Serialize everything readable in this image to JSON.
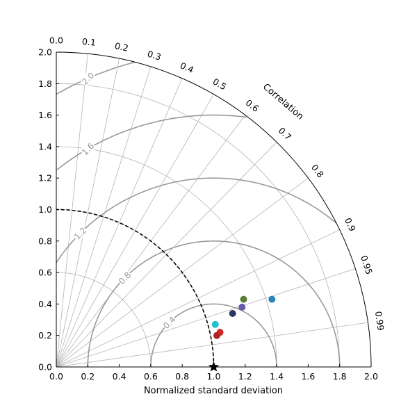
{
  "chart_data": {
    "type": "scatter",
    "subtype": "taylor-diagram",
    "xlabel": "Normalized standard deviation",
    "ylabel": "",
    "arc_label": "Correlation",
    "xlim": [
      0.0,
      2.0
    ],
    "ylim": [
      0.0,
      2.0
    ],
    "x_ticks": [
      "0.0",
      "0.2",
      "0.4",
      "0.6",
      "0.8",
      "1.0",
      "1.2",
      "1.4",
      "1.6",
      "1.8",
      "2.0"
    ],
    "y_ticks": [
      "0.0",
      "0.2",
      "0.4",
      "0.6",
      "0.8",
      "1.0",
      "1.2",
      "1.4",
      "1.6",
      "1.8",
      "2.0"
    ],
    "correlation_ticks": [
      "0.0",
      "0.1",
      "0.2",
      "0.3",
      "0.4",
      "0.5",
      "0.6",
      "0.7",
      "0.8",
      "0.9",
      "0.95",
      "0.99"
    ],
    "correlation_values": [
      0.0,
      0.1,
      0.2,
      0.3,
      0.4,
      0.5,
      0.6,
      0.7,
      0.8,
      0.9,
      0.95,
      0.99
    ],
    "std_arcs": [
      0.6,
      1.0,
      1.4,
      1.8
    ],
    "rms_contours": [
      {
        "value": 0.4,
        "label": "0.4"
      },
      {
        "value": 0.8,
        "label": "0.8"
      },
      {
        "value": 1.2,
        "label": "1.2"
      },
      {
        "value": 1.6,
        "label": "1.6"
      },
      {
        "value": 2.0,
        "label": "2.0"
      }
    ],
    "reference": {
      "x": 1.0,
      "y": 0.0,
      "marker": "star"
    },
    "reference_arc": 1.0,
    "points": [
      {
        "x": 1.37,
        "y": 0.43,
        "color": "#2b83ba"
      },
      {
        "x": 1.19,
        "y": 0.43,
        "color": "#5a7d32"
      },
      {
        "x": 1.18,
        "y": 0.38,
        "color": "#6a5aaa"
      },
      {
        "x": 1.12,
        "y": 0.34,
        "color": "#2c3566"
      },
      {
        "x": 1.01,
        "y": 0.27,
        "color": "#1fbfcf"
      },
      {
        "x": 1.04,
        "y": 0.22,
        "color": "#d62728"
      },
      {
        "x": 1.02,
        "y": 0.2,
        "color": "#b22222"
      }
    ],
    "grid": true
  },
  "colors": {
    "grid": "#b3b3b3",
    "contour": "#999999",
    "axis": "#000000"
  }
}
